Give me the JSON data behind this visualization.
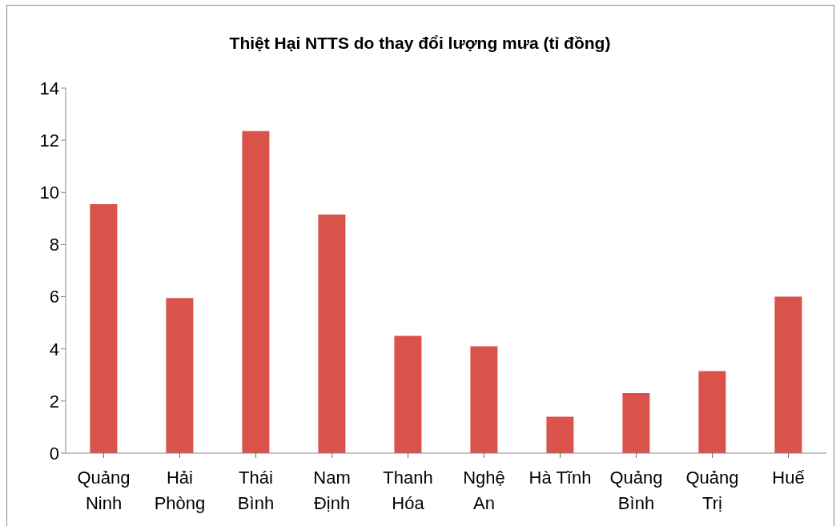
{
  "chart_data": {
    "type": "bar",
    "title": "Thiệt Hại NTTS do thay đổi lượng mưa (tỉ đồng)",
    "categories": [
      "Quảng Ninh",
      "Hải Phòng",
      "Thái Bình",
      "Nam Định",
      "Thanh Hóa",
      "Nghệ An",
      "Hà Tĩnh",
      "Quảng Bình",
      "Quảng Trị",
      "Huế"
    ],
    "values": [
      9.55,
      5.95,
      12.35,
      9.15,
      4.5,
      4.1,
      1.4,
      2.3,
      3.15,
      6.0
    ],
    "color": "#d9534a",
    "ylim": [
      0,
      14
    ],
    "yticks": [
      0,
      2,
      4,
      6,
      8,
      10,
      12,
      14
    ]
  }
}
